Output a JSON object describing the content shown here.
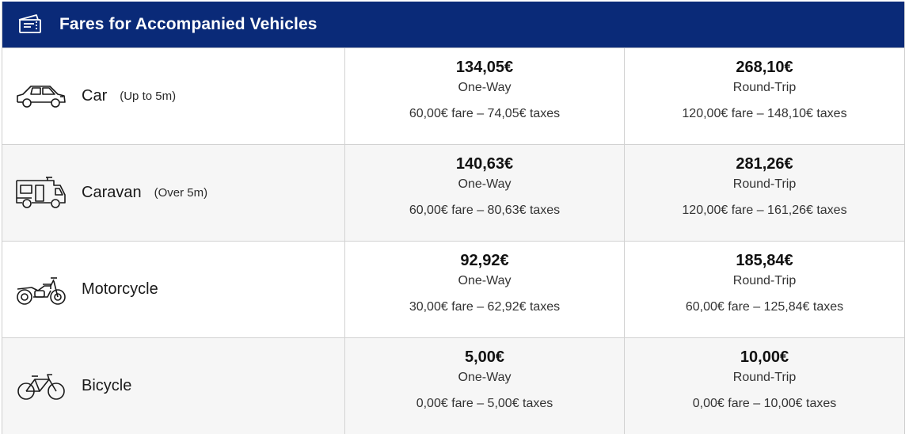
{
  "header": {
    "title": "Fares for Accompanied Vehicles",
    "icon": "tickets-icon",
    "background": "#0a2a78"
  },
  "rows": [
    {
      "vehicle": "Car",
      "note": "(Up to 5m)",
      "icon": "car-icon",
      "one_way": {
        "price": "134,05€",
        "label": "One-Way",
        "breakdown": "60,00€ fare – 74,05€ taxes"
      },
      "round_trip": {
        "price": "268,10€",
        "label": "Round-Trip",
        "breakdown": "120,00€ fare – 148,10€ taxes"
      }
    },
    {
      "vehicle": "Caravan",
      "note": "(Over 5m)",
      "icon": "caravan-icon",
      "one_way": {
        "price": "140,63€",
        "label": "One-Way",
        "breakdown": "60,00€ fare – 80,63€ taxes"
      },
      "round_trip": {
        "price": "281,26€",
        "label": "Round-Trip",
        "breakdown": "120,00€ fare – 161,26€ taxes"
      }
    },
    {
      "vehicle": "Motorcycle",
      "note": "",
      "icon": "motorcycle-icon",
      "one_way": {
        "price": "92,92€",
        "label": "One-Way",
        "breakdown": "30,00€ fare – 62,92€ taxes"
      },
      "round_trip": {
        "price": "185,84€",
        "label": "Round-Trip",
        "breakdown": "60,00€ fare – 125,84€ taxes"
      }
    },
    {
      "vehicle": "Bicycle",
      "note": "",
      "icon": "bicycle-icon",
      "one_way": {
        "price": "5,00€",
        "label": "One-Way",
        "breakdown": "0,00€ fare – 5,00€ taxes"
      },
      "round_trip": {
        "price": "10,00€",
        "label": "Round-Trip",
        "breakdown": "0,00€ fare – 10,00€ taxes"
      }
    }
  ]
}
